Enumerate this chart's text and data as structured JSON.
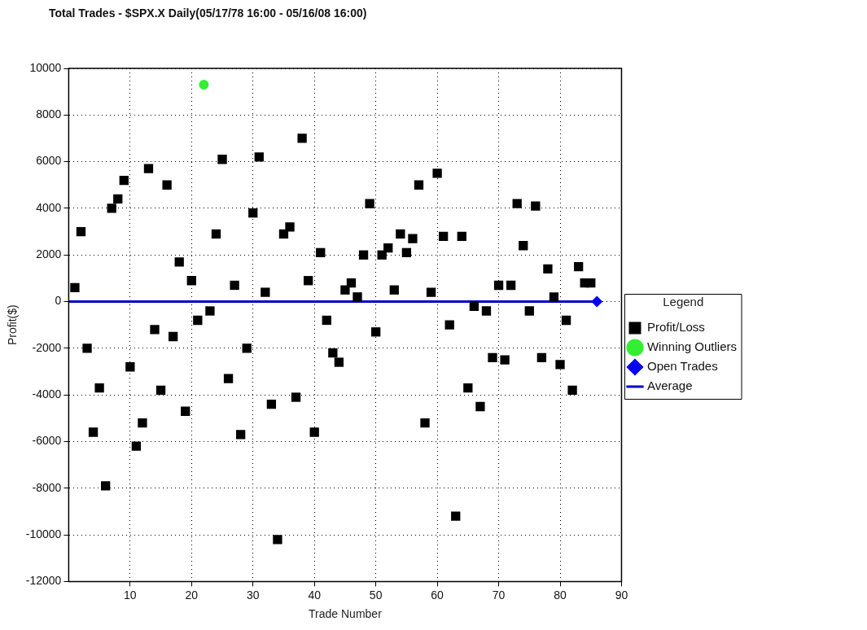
{
  "chart_data": {
    "type": "scatter",
    "title": "Total Trades - $SPX.X Daily(05/17/78 16:00 - 05/16/08 16:00)",
    "xlabel": "Trade Number",
    "ylabel": "Profit($)",
    "legend_title": "Legend",
    "legend": "right",
    "grid": true,
    "xlim": [
      0,
      90
    ],
    "xticks": [
      10,
      20,
      30,
      40,
      50,
      60,
      70,
      80,
      90
    ],
    "ylim": [
      -12000,
      10000
    ],
    "yticks": [
      -12000,
      -10000,
      -8000,
      -6000,
      -4000,
      -2000,
      0,
      2000,
      4000,
      6000,
      8000,
      10000
    ],
    "series": [
      {
        "name": "Profit/Loss",
        "type": "scatter",
        "marker": "square",
        "color": "#000000",
        "x": [
          1,
          2,
          3,
          4,
          5,
          6,
          7,
          8,
          9,
          10,
          11,
          12,
          13,
          14,
          15,
          16,
          17,
          18,
          19,
          20,
          21,
          23,
          24,
          25,
          26,
          27,
          28,
          29,
          30,
          31,
          32,
          33,
          34,
          35,
          36,
          37,
          38,
          39,
          40,
          41,
          42,
          43,
          44,
          45,
          46,
          47,
          48,
          49,
          50,
          51,
          52,
          53,
          54,
          55,
          56,
          57,
          58,
          59,
          60,
          61,
          62,
          63,
          64,
          65,
          66,
          67,
          68,
          69,
          70,
          71,
          72,
          73,
          74,
          75,
          76,
          77,
          78,
          79,
          80,
          81,
          82,
          83,
          84,
          85
        ],
        "values": [
          600,
          3000,
          -2000,
          -5600,
          -3700,
          -7900,
          4000,
          4400,
          5200,
          -2800,
          -6200,
          -5200,
          5700,
          -1200,
          -3800,
          5000,
          -1500,
          1700,
          -4700,
          900,
          -800,
          -400,
          2900,
          6100,
          -3300,
          700,
          -5700,
          -2000,
          3800,
          6200,
          400,
          -4400,
          -10200,
          2900,
          3200,
          -4100,
          7000,
          900,
          -5600,
          2100,
          -800,
          -2200,
          -2600,
          500,
          800,
          200,
          2000,
          4200,
          -1300,
          2000,
          2300,
          500,
          2900,
          2100,
          2700,
          5000,
          -5200,
          400,
          5500,
          2800,
          -1000,
          -9200,
          2800,
          -3700,
          -200,
          -4500,
          -400,
          -2400,
          700,
          -2500,
          700,
          4200,
          2400,
          -400,
          4100,
          -2400,
          1400,
          200,
          -2700,
          -800,
          -3800,
          1500,
          800,
          800
        ]
      },
      {
        "name": "Winning Outliers",
        "type": "scatter",
        "marker": "circle",
        "color": "#33ee33",
        "x": [
          22
        ],
        "values": [
          9300
        ]
      },
      {
        "name": "Open Trades",
        "type": "scatter",
        "marker": "diamond",
        "color": "#0000ee",
        "x": [
          86
        ],
        "values": [
          0
        ]
      },
      {
        "name": "Average",
        "type": "line",
        "marker": "none",
        "line_style": "solid",
        "color": "#0000cc",
        "x": [
          0,
          86
        ],
        "values": [
          0,
          0
        ]
      }
    ]
  }
}
